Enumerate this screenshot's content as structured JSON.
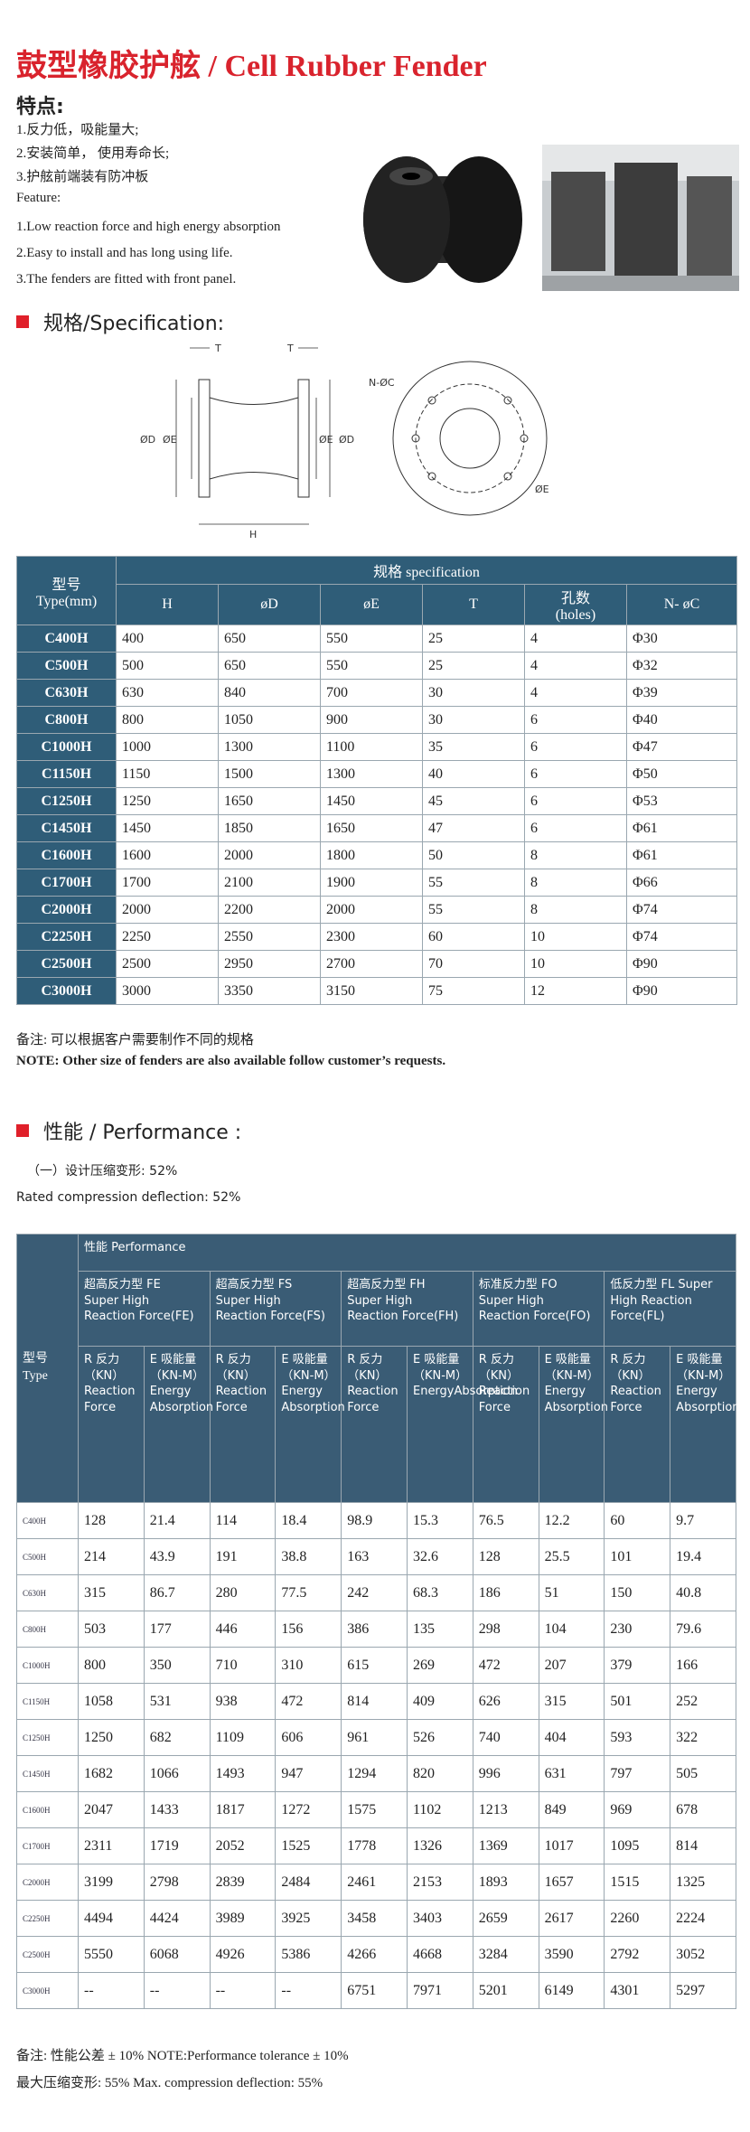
{
  "header": {
    "title": "鼓型橡胶护舷 / Cell Rubber Fender"
  },
  "features": {
    "heading": "特点:",
    "cn": [
      "1.反力低，吸能量大;",
      "2.安装简单， 使用寿命长;",
      "3.护舷前端装有防冲板"
    ],
    "en_heading": "Feature:",
    "en": [
      "1.Low reaction force and high energy absorption",
      "2.Easy to install and has long using life.",
      "3.The fenders are fitted with front panel."
    ]
  },
  "specification": {
    "heading": "规格/Specification:",
    "drawing": {
      "t_left": "T",
      "t_right": "T",
      "d_left": "ØD",
      "e_left": "ØE",
      "e_right": "ØE",
      "d_right": "ØD",
      "h": "H",
      "nc": "N-ØC",
      "e_front": "ØE"
    },
    "table": {
      "type_header": "型号\nType(mm)",
      "group_header": "规格 specification",
      "columns": [
        "H",
        "øD",
        "øE",
        "T",
        "孔数\n(holes)",
        "N- øC"
      ],
      "rows": [
        [
          "C400H",
          400,
          650,
          550,
          25,
          4,
          "Φ30"
        ],
        [
          "C500H",
          500,
          650,
          550,
          25,
          4,
          "Φ32"
        ],
        [
          "C630H",
          630,
          840,
          700,
          30,
          4,
          "Φ39"
        ],
        [
          "C800H",
          800,
          1050,
          900,
          30,
          6,
          "Φ40"
        ],
        [
          "C1000H",
          1000,
          1300,
          1100,
          35,
          6,
          "Φ47"
        ],
        [
          "C1150H",
          1150,
          1500,
          1300,
          40,
          6,
          "Φ50"
        ],
        [
          "C1250H",
          1250,
          1650,
          1450,
          45,
          6,
          "Φ53"
        ],
        [
          "C1450H",
          1450,
          1850,
          1650,
          47,
          6,
          "Φ61"
        ],
        [
          "C1600H",
          1600,
          2000,
          1800,
          50,
          8,
          "Φ61"
        ],
        [
          "C1700H",
          1700,
          2100,
          1900,
          55,
          8,
          "Φ66"
        ],
        [
          "C2000H",
          2000,
          2200,
          2000,
          55,
          8,
          "Φ74"
        ],
        [
          "C2250H",
          2250,
          2550,
          2300,
          60,
          10,
          "Φ74"
        ],
        [
          "C2500H",
          2500,
          2950,
          2700,
          70,
          10,
          "Φ90"
        ],
        [
          "C3000H",
          3000,
          3350,
          3150,
          75,
          12,
          "Φ90"
        ]
      ]
    },
    "note_cn": "备注:  可以根据客户需要制作不同的规格",
    "note_en": "NOTE: Other size of fenders are also available follow customer’s requests."
  },
  "performance": {
    "heading": "性能 / Performance :",
    "rated_cn": "（一）设计压缩变形:  52%",
    "rated_en": "Rated compression deflection:  52%",
    "table": {
      "type_header": "型号\nType",
      "top_header": "性能  Performance",
      "groups": [
        {
          "name": "超高反力型 FE\nSuper High Reaction Force(FE)",
          "r": "R 反力（KN）Reaction Force",
          "e": "E 吸能量（KN-M）Energy Absorption"
        },
        {
          "name": "超高反力型 FS\nSuper High Reaction Force(FS)",
          "r": "R 反力（KN）Reaction Force",
          "e": "E 吸能量（KN-M）Energy Absorption"
        },
        {
          "name": "超高反力型 FH\nSuper High Reaction Force(FH)",
          "r": "R 反力（KN）Reaction Force",
          "e": "E 吸能量（KN-M）EnergyAbsorption"
        },
        {
          "name": "标准反力型 FO\nSuper High Reaction Force(FO)",
          "r": "R 反力（KN）Reaction Force",
          "e": "E 吸能量（KN-M）Energy Absorption"
        },
        {
          "name": "低反力型 FL Super\nHigh Reaction Force(FL)",
          "r": "R 反力（KN）Reaction Force",
          "e": "E 吸能量（KN-M）Energy Absorption"
        }
      ],
      "rows": [
        [
          "C400H",
          128,
          21.4,
          114,
          18.4,
          98.9,
          15.3,
          76.5,
          12.2,
          60,
          9.7
        ],
        [
          "C500H",
          214,
          43.9,
          191,
          38.8,
          163,
          32.6,
          128,
          25.5,
          101,
          19.4
        ],
        [
          "C630H",
          315,
          86.7,
          280,
          77.5,
          242,
          68.3,
          186,
          51,
          150,
          40.8
        ],
        [
          "C800H",
          503,
          177,
          446,
          156,
          386,
          135,
          298,
          104,
          230,
          79.6
        ],
        [
          "C1000H",
          800,
          350,
          710,
          310,
          615,
          269,
          472,
          207,
          379,
          166
        ],
        [
          "C1150H",
          1058,
          531,
          938,
          472,
          814,
          409,
          626,
          315,
          501,
          252
        ],
        [
          "C1250H",
          1250,
          682,
          1109,
          606,
          961,
          526,
          740,
          404,
          593,
          322
        ],
        [
          "C1450H",
          1682,
          1066,
          1493,
          947,
          1294,
          820,
          996,
          631,
          797,
          505
        ],
        [
          "C1600H",
          2047,
          1433,
          1817,
          1272,
          1575,
          1102,
          1213,
          849,
          969,
          678
        ],
        [
          "C1700H",
          2311,
          1719,
          2052,
          1525,
          1778,
          1326,
          1369,
          1017,
          1095,
          814
        ],
        [
          "C2000H",
          3199,
          2798,
          2839,
          2484,
          2461,
          2153,
          1893,
          1657,
          1515,
          1325
        ],
        [
          "C2250H",
          4494,
          4424,
          3989,
          3925,
          3458,
          3403,
          2659,
          2617,
          2260,
          2224
        ],
        [
          "C2500H",
          5550,
          6068,
          4926,
          5386,
          4266,
          4668,
          3284,
          3590,
          2792,
          3052
        ],
        [
          "C3000H",
          "--",
          "--",
          "--",
          "--",
          6751,
          7971,
          5201,
          6149,
          4301,
          5297
        ]
      ]
    },
    "note_1": "备注:  性能公差 ± 10%  NOTE:Performance tolerance ± 10%",
    "note_2": "最大压缩变形:  55%   Max. compression deflection:  55%"
  }
}
